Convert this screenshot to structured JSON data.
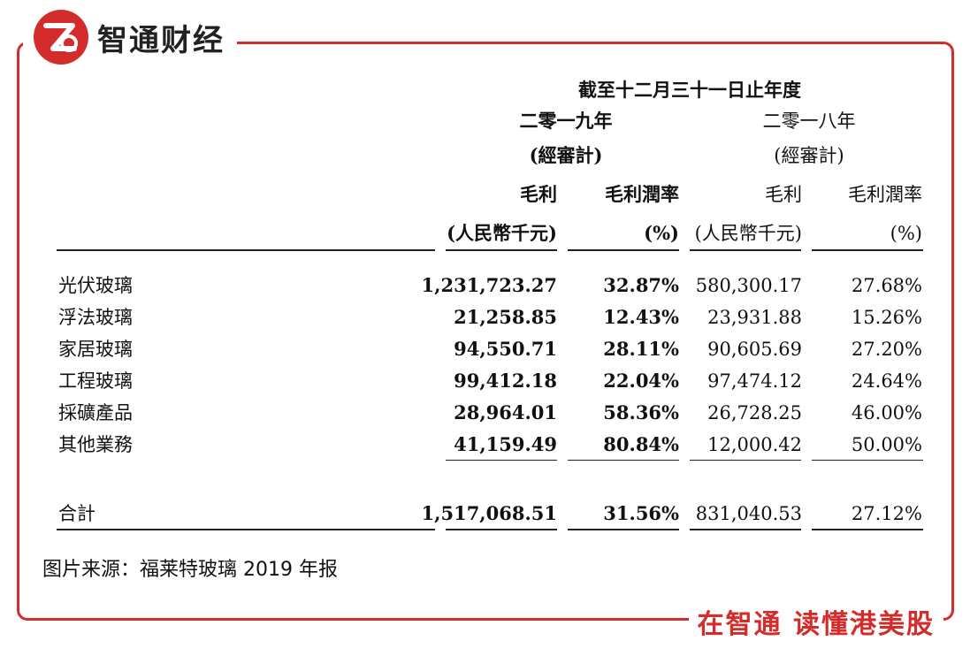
{
  "brand": {
    "logo_letter": "Z",
    "name": "智通财经",
    "slogan": "在智通 读懂港美股",
    "accent_color": "#d42b2b"
  },
  "table": {
    "period_header": "截至十二月三十一日止年度",
    "years": [
      {
        "label": "二零一九年",
        "audit": "(經審計)"
      },
      {
        "label": "二零一八年",
        "audit": "(經審計)"
      }
    ],
    "columns": [
      {
        "label": "毛利",
        "unit": "(人民幣千元)"
      },
      {
        "label": "毛利潤率",
        "unit": "(%)"
      },
      {
        "label": "毛利",
        "unit": "(人民幣千元)"
      },
      {
        "label": "毛利潤率",
        "unit": "(%)"
      }
    ],
    "rows": [
      {
        "name": "光伏玻璃",
        "v2019_profit": "1,231,723.27",
        "v2019_margin": "32.87%",
        "v2018_profit": "580,300.17",
        "v2018_margin": "27.68%"
      },
      {
        "name": "浮法玻璃",
        "v2019_profit": "21,258.85",
        "v2019_margin": "12.43%",
        "v2018_profit": "23,931.88",
        "v2018_margin": "15.26%"
      },
      {
        "name": "家居玻璃",
        "v2019_profit": "94,550.71",
        "v2019_margin": "28.11%",
        "v2018_profit": "90,605.69",
        "v2018_margin": "27.20%"
      },
      {
        "name": "工程玻璃",
        "v2019_profit": "99,412.18",
        "v2019_margin": "22.04%",
        "v2018_profit": "97,474.12",
        "v2018_margin": "24.64%"
      },
      {
        "name": "採礦產品",
        "v2019_profit": "28,964.01",
        "v2019_margin": "58.36%",
        "v2018_profit": "26,728.25",
        "v2018_margin": "46.00%"
      },
      {
        "name": "其他業務",
        "v2019_profit": "41,159.49",
        "v2019_margin": "80.84%",
        "v2018_profit": "12,000.42",
        "v2018_margin": "50.00%"
      }
    ],
    "total": {
      "name": "合計",
      "v2019_profit": "1,517,068.51",
      "v2019_margin": "31.56%",
      "v2018_profit": "831,040.53",
      "v2018_margin": "27.12%"
    }
  },
  "source": "图片来源：福莱特玻璃 2019 年报"
}
